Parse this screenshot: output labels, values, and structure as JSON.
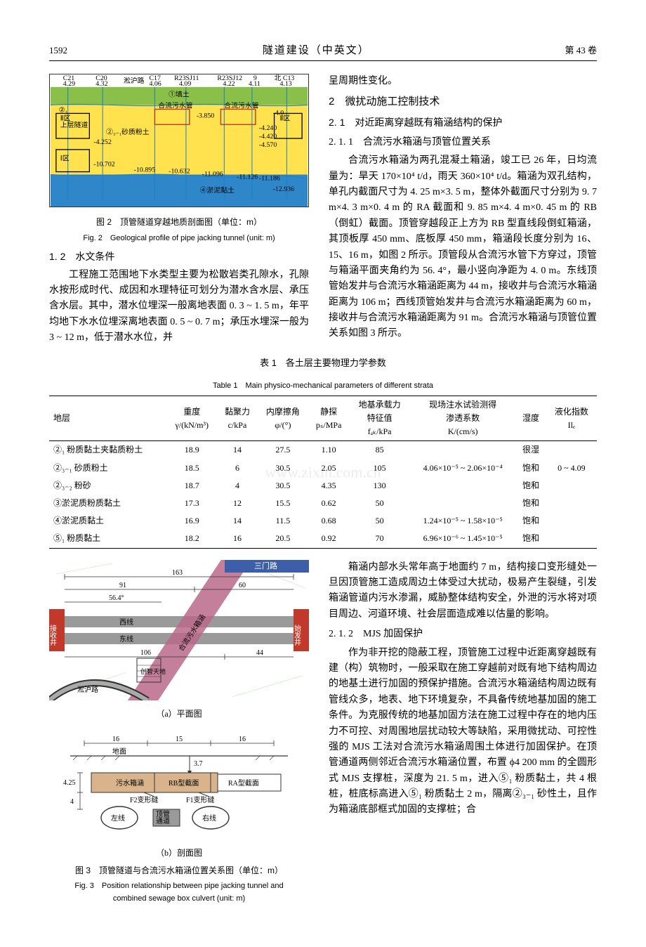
{
  "page": {
    "number": "1592",
    "journal": "隧道建设（中英文）",
    "volume": "第 43 卷"
  },
  "figure2": {
    "caption_zh": "图 2　顶管隧道穿越地质剖面图（单位：m）",
    "caption_en": "Fig. 2　Geological profile of pipe jacking tunnel (unit: m)",
    "top_labels": [
      {
        "name": "C21",
        "val": "4.29"
      },
      {
        "name": "C20",
        "val": "4.32"
      },
      {
        "name": "淞沪路",
        "val": ""
      },
      {
        "name": "C17",
        "val": "4.06"
      },
      {
        "name": "R23SJ11",
        "val": "4.09"
      },
      {
        "name": "R23SJ12",
        "val": "4.22"
      },
      {
        "name": "9",
        "val": "4.11"
      },
      {
        "name": "北 C13",
        "val": "4.13"
      }
    ],
    "layer_labels": [
      "①填土",
      "②₁",
      "Ⅱ区 上层隧道",
      "②₃₋₁砂质粉土",
      "合流污水管",
      "合流污水管",
      "Ⅱ区",
      "Ⅰ区",
      "④淤泥黏土"
    ],
    "depth_marks": [
      "-3.850",
      "-4.0",
      "-4.240",
      "-4.420",
      "-4.570",
      "-4.252",
      "-10.702",
      "-10.895",
      "-10.632",
      "-11.096",
      "-11.126",
      "-11.186",
      "-12.936"
    ],
    "colors": {
      "fill_top": "#8abf4a",
      "fill_mid": "#ffe24d",
      "fill_low": "#2f87c9",
      "border": "#1a80c7"
    }
  },
  "section_1_2": {
    "head": "1. 2　水文条件",
    "para": "工程施工范围地下水类型主要为松散岩类孔隙水，孔隙水按形成时代、成因和水理特征可划分为潜水含水层、承压含水层。其中，潜水位埋深一般离地表面 0. 3 ~ 1. 5 m，年平均地下水水位埋深离地表面 0. 5 ~ 0. 7 m；承压水埋深一般为 3 ~ 12 m，低于潜水水位，并"
  },
  "right_top_para": "呈周期性变化。",
  "section_2": {
    "head": "2　微扰动施工控制技术",
    "sub21": "2. 1　对近距离穿越既有箱涵结构的保护",
    "sub211": "2. 1. 1　合流污水箱涵与顶管位置关系",
    "para211": "合流污水箱涵为两孔混凝土箱涵，竣工已 26 年，日均流量为：旱天 170×10⁴ t/d，雨天 360×10⁴ t/d。箱涵为双孔结构，单孔内截面尺寸为 4. 25 m×3. 5 m，整体外截面尺寸分别为 9. 7 m×4. 3 m×0. 4 m 的 RA 截面和 9. 85 m×4. 4 m×0. 45 m 的 RB（倒虹）截面。顶管穿越段正上方为 RB 型直线段倒虹箱涵，其顶板厚 450 mm、底板厚 450 mm，箱涵段长度分别为 16、15、16 m，如图 2 所示。顶管段从合流污水管下方穿过，顶管与箱涵平面夹角约为 56. 4°，最小竖向净距为 4. 0 m。东线顶管始发井与合流污水箱涵距离为 44 m，接收井与合流污水箱涵距离为 106 m；西线顶管始发井与合流污水箱涵距离为 60 m，接收井与合流污水箱涵距离为 91 m。合流污水箱涵与顶管位置关系如图 3 所示。"
  },
  "table1": {
    "title_zh": "表 1　各土层主要物理力学参数",
    "title_en": "Table 1　Main physico-mechanical parameters of different strata",
    "columns": [
      "地层",
      "重度 γ/(kN/m³)",
      "黏聚力 c/kPa",
      "内摩擦角 φ/(°)",
      "静探 pₛ/MPa",
      "地基承载力 特征值 fₐₖ/kPa",
      "现场注水试验测得 渗透系数 K/(cm/s)",
      "湿度",
      "液化指数 Ilₑ"
    ],
    "rows": [
      [
        "②₁ 粉质黏土夹黏质粉土",
        "18.9",
        "14",
        "27.5",
        "1.10",
        "85",
        "",
        "很湿",
        ""
      ],
      [
        "②₃₋₁ 砂质粉土",
        "18.5",
        "6",
        "30.5",
        "2.05",
        "105",
        "4.06×10⁻⁵ ~ 2.06×10⁻⁴",
        "饱和",
        "0 ~ 4.09"
      ],
      [
        "②₃₋₂ 粉砂",
        "18.7",
        "4",
        "30.5",
        "4.35",
        "130",
        "",
        "饱和",
        ""
      ],
      [
        "③淤泥质粉质黏土",
        "17.3",
        "12",
        "15.5",
        "0.62",
        "50",
        "",
        "饱和",
        ""
      ],
      [
        "④淤泥质黏土",
        "16.9",
        "14",
        "11.5",
        "0.68",
        "50",
        "1.24×10⁻⁵ ~ 1.58×10⁻⁵",
        "饱和",
        ""
      ],
      [
        "⑤₁ 粉质黏土",
        "18.2",
        "16",
        "20.5",
        "0.92",
        "70",
        "6.96×10⁻⁶ ~ 1.45×10⁻⁵",
        "饱和",
        ""
      ]
    ],
    "watermark": "www.zixin.com.cn"
  },
  "figure3": {
    "caption_zh": "图 3　顶管隧道与合流污水箱涵位置关系图（单位：m）",
    "caption_en": "Fig. 3　Position relationship between pipe jacking tunnel and combined sewage box culvert (unit: m)",
    "sub_a": "（a）平面图",
    "sub_b": "（b）剖面图",
    "plan": {
      "shaft_left": "接收井",
      "shaft_right": "始发井",
      "road_nw": "三门路",
      "road_sw": "淞沪路",
      "diag_label": "合流污水箱涵",
      "west_line": "西线",
      "east_line": "东线",
      "xstreet": "创智天地",
      "dims": {
        "total": "163",
        "wr": "91",
        "wl": "60",
        "angle": "56.4°",
        "er": "106",
        "el": "44"
      },
      "colors": {
        "shaft": "#c0392b",
        "pipe": "#9a9a9a",
        "culvert": "#ba6a88",
        "road": "#3d5ea8",
        "bg": "#ffffff"
      }
    },
    "section": {
      "seg_dims": [
        "16",
        "15",
        "16"
      ],
      "ground": "地面",
      "arrow_down": "3.7",
      "culvert_label": "污水箱涵",
      "rb_label": "RB型截面",
      "ra_label": "RA型截面",
      "f2": "F2变形缝",
      "f1": "F1变形缝",
      "left_line": "左线",
      "right_line": "右线",
      "pipe_label": "顶管通道",
      "dim_w": "4.25",
      "dim_gap": "4",
      "colors": {
        "culvert": "#d9b38c",
        "tunnel": "#9a9a9a",
        "line": "#333"
      }
    }
  },
  "right_bottom": {
    "para_intro": "箱涵内部水头常年高于地面约 7 m，结构接口变形缝处一旦因顶管施工造成周边土体受过大扰动，极易产生裂缝，引发箱涵管道内污水渗漏，威胁整体结构安全，外泄的污水将对项目周边、河道环境、社会层面造成难以估量的影响。",
    "sub212_head": "2. 1. 2　MJS 加固保护",
    "sub212_para": "作为非开挖的隐蔽工程，顶管施工过程中近距离穿越既有建（构）筑物时，一般采取在施工穿越前对既有地下结构周边的地基土进行加固的预保护措施。合流污水箱涵结构周边既有管线众多，地表、地下环境复杂，不具备传统地基加固的施工条件。为克服传统的地基加固方法在施工过程中存在的地内压力不可控、对周围地层扰动较大等缺陷，采用微扰动、可控性强的 MJS 工法对合流污水箱涵周围土体进行加固保护。在顶管通道两侧邻近合流污水箱涵位置，布置 ϕ4 200 mm 的全圆形式 MJS 支撑桩，深度为 21. 5 m，进入⑤₁ 粉质黏土，共 4 根桩，桩底标高进入⑤₁ 粉质黏土 2 m，隔离②₃₋₁ 砂性土，且作为箱涵底部框式加固的支撑桩；合"
  }
}
